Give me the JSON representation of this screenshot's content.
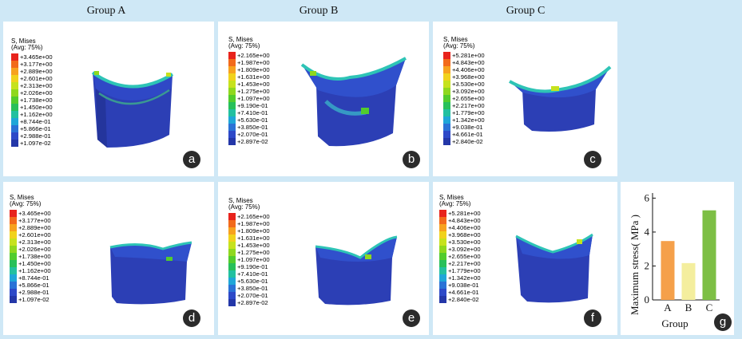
{
  "groups": [
    "Group A",
    "Group  B",
    "Group C"
  ],
  "legend_title_1": "S, Mises",
  "legend_title_2": "(Avg: 75%)",
  "legends": {
    "A": [
      "+3.465e+00",
      "+3.177e+00",
      "+2.889e+00",
      "+2.601e+00",
      "+2.313e+00",
      "+2.026e+00",
      "+1.738e+00",
      "+1.450e+00",
      "+1.162e+00",
      "+8.744e-01",
      "+5.866e-01",
      "+2.988e-01",
      "+1.097e-02"
    ],
    "B": [
      "+2.165e+00",
      "+1.987e+00",
      "+1.809e+00",
      "+1.631e+00",
      "+1.453e+00",
      "+1.275e+00",
      "+1.097e+00",
      "+9.190e-01",
      "+7.410e-01",
      "+5.630e-01",
      "+3.850e-01",
      "+2.070e-01",
      "+2.897e-02"
    ],
    "C": [
      "+5.281e+00",
      "+4.843e+00",
      "+4.406e+00",
      "+3.968e+00",
      "+3.530e+00",
      "+3.092e+00",
      "+2.655e+00",
      "+2.217e+00",
      "+1.779e+00",
      "+1.342e+00",
      "+9.038e-01",
      "+4.661e-01",
      "+2.840e-02"
    ]
  },
  "legend_colors": [
    "#e8231c",
    "#f26a1b",
    "#f7a21e",
    "#f1d21c",
    "#c6e21d",
    "#8fd81e",
    "#52cc2d",
    "#27c05a",
    "#22c0a0",
    "#1fa6d8",
    "#2a72d6",
    "#2d49c8",
    "#2437a8"
  ],
  "badges": [
    "a",
    "b",
    "c",
    "d",
    "e",
    "f",
    "g"
  ],
  "chart_data": {
    "type": "bar",
    "categories": [
      "A",
      "B",
      "C"
    ],
    "values": [
      3.47,
      2.17,
      5.28
    ],
    "colors": [
      "#f5a04a",
      "#f4ee9e",
      "#7dbf45"
    ],
    "xlabel": "Group",
    "ylabel": "Maximum stress( MPa )",
    "yticks": [
      0,
      2,
      4,
      6
    ],
    "ylim": [
      0,
      6.3
    ]
  }
}
